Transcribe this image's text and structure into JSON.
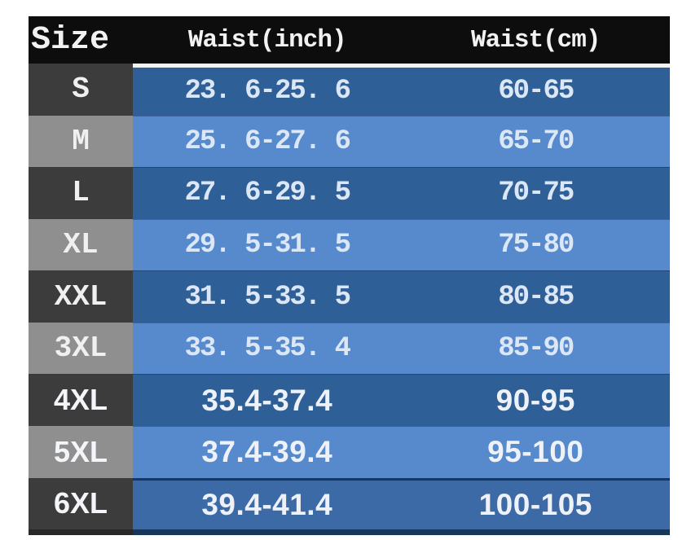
{
  "table": {
    "columns": [
      "Size",
      "Waist(inch)",
      "Waist(cm)"
    ],
    "rows": [
      {
        "size": "S",
        "inch": "23. 6-25. 6",
        "cm": "60-65",
        "tone": "dark",
        "font": "mono"
      },
      {
        "size": "M",
        "inch": "25. 6-27. 6",
        "cm": "65-70",
        "tone": "light",
        "font": "mono"
      },
      {
        "size": "L",
        "inch": "27. 6-29. 5",
        "cm": "70-75",
        "tone": "dark",
        "font": "mono"
      },
      {
        "size": "XL",
        "inch": "29. 5-31. 5",
        "cm": "75-80",
        "tone": "light",
        "font": "mono"
      },
      {
        "size": "XXL",
        "inch": "31. 5-33. 5",
        "cm": "80-85",
        "tone": "dark",
        "font": "mono"
      },
      {
        "size": "3XL",
        "inch": "33. 5-35. 4",
        "cm": "85-90",
        "tone": "light",
        "font": "mono"
      },
      {
        "size": "4XL",
        "inch": "35.4-37.4",
        "cm": "90-95",
        "tone": "dark",
        "font": "sans"
      },
      {
        "size": "5XL",
        "inch": "37.4-39.4",
        "cm": "95-100",
        "tone": "light",
        "font": "sans"
      },
      {
        "size": "6XL",
        "inch": "39.4-41.4",
        "cm": "100-105",
        "tone": "medium",
        "font": "sans"
      }
    ]
  },
  "colors": {
    "header_bg": "#0d0d0d",
    "header_text": "#f2f2f2",
    "dark_gray": "#3c3c3c",
    "light_gray": "#8f8f8f",
    "dark_blue": "#2f5f97",
    "light_blue": "#568acc",
    "medium_blue": "#3b6aa6",
    "cell_text": "#dbe7f7"
  },
  "chart_data": {
    "type": "table",
    "title": "Size chart: waist measurements",
    "columns": [
      "Size",
      "Waist(inch)",
      "Waist(cm)"
    ],
    "rows": [
      [
        "S",
        "23.6-25.6",
        "60-65"
      ],
      [
        "M",
        "25.6-27.6",
        "65-70"
      ],
      [
        "L",
        "27.6-29.5",
        "70-75"
      ],
      [
        "XL",
        "29.5-31.5",
        "75-80"
      ],
      [
        "XXL",
        "31.5-33.5",
        "80-85"
      ],
      [
        "3XL",
        "33.5-35.4",
        "85-90"
      ],
      [
        "4XL",
        "35.4-37.4",
        "90-95"
      ],
      [
        "5XL",
        "37.4-39.4",
        "95-100"
      ],
      [
        "6XL",
        "39.4-41.4",
        "100-105"
      ]
    ]
  }
}
